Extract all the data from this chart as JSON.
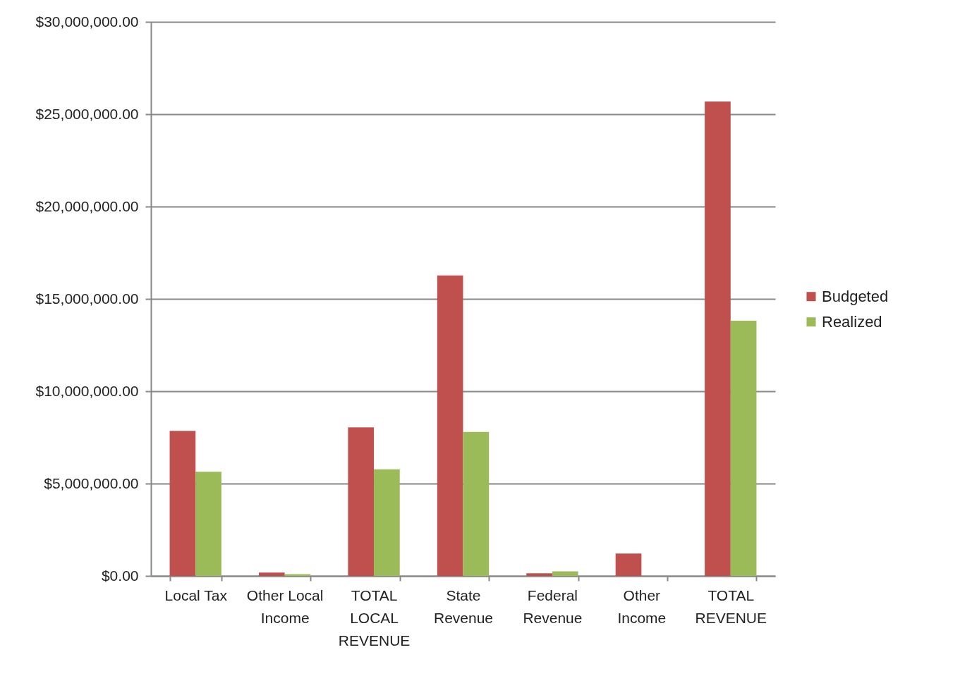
{
  "chart_data": {
    "type": "bar",
    "categories": [
      "Local Tax",
      "Other Local Income",
      "TOTAL LOCAL REVENUE",
      "State Revenue",
      "Federal Revenue",
      "Other Income",
      "TOTAL REVENUE"
    ],
    "series": [
      {
        "name": "Budgeted",
        "color": "#c0504d",
        "values": [
          7850000,
          180000,
          8040000,
          16270000,
          140000,
          1210000,
          25690000
        ]
      },
      {
        "name": "Realized",
        "color": "#9bbb59",
        "values": [
          5640000,
          100000,
          5770000,
          7800000,
          250000,
          null,
          13820000
        ]
      }
    ],
    "ylim": [
      0,
      30000000
    ],
    "yticks": [
      {
        "value": 0,
        "label": "$0.00"
      },
      {
        "value": 5000000,
        "label": "$5,000,000.00"
      },
      {
        "value": 10000000,
        "label": "$10,000,000.00"
      },
      {
        "value": 15000000,
        "label": "$15,000,000.00"
      },
      {
        "value": 20000000,
        "label": "$20,000,000.00"
      },
      {
        "value": 25000000,
        "label": "$25,000,000.00"
      },
      {
        "value": 30000000,
        "label": "$30,000,000.00"
      }
    ],
    "grid": "y",
    "legend": "right"
  }
}
